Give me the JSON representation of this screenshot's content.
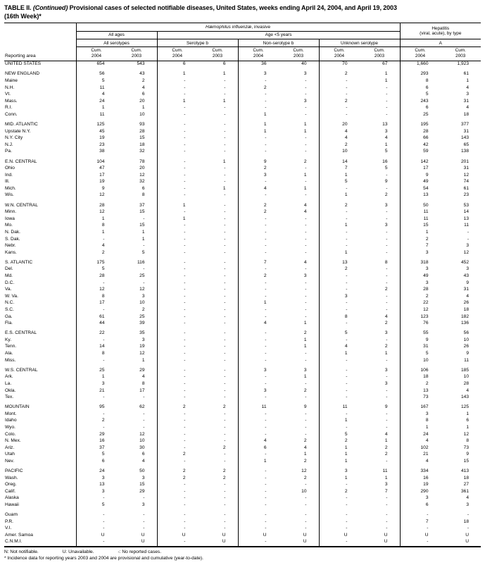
{
  "title": {
    "label": "TABLE II.",
    "continued": "(Continued)",
    "main": "Provisional cases of selected notifiable diseases, United States, weeks ending April 24, 2004, and April 19, 2003",
    "week": "(16th Week)*"
  },
  "header": {
    "reporting_area": "Reporting area",
    "group1_italic": "Hæmophilus influenzæ",
    "group1_rest": ", invasive",
    "group2_line1": "Hepatitis",
    "group2_line2": "(viral, acute), by type",
    "all_ages": "All ages",
    "age_under5": "Age <5 years",
    "all_serotypes": "All serotypes",
    "serotype_b": "Serotype b",
    "non_serotype_b": "Non-serotype b",
    "unknown_serotype": "Unknown serotype",
    "type_a": "A",
    "cum_label": "Cum.",
    "year_2004": "2004",
    "year_2003": "2003"
  },
  "rows": [
    {
      "area": "UNITED STATES",
      "t": "total",
      "v": [
        "654",
        "543",
        "6",
        "6",
        "36",
        "40",
        "70",
        "67",
        "1,660",
        "1,923"
      ]
    },
    {
      "area": "NEW ENGLAND",
      "t": "region",
      "gap": true,
      "v": [
        "56",
        "43",
        "1",
        "1",
        "3",
        "3",
        "2",
        "1",
        "293",
        "61"
      ]
    },
    {
      "area": "Maine",
      "t": "state",
      "v": [
        "5",
        "2",
        "-",
        "-",
        "-",
        "-",
        "-",
        "1",
        "8",
        "1"
      ]
    },
    {
      "area": "N.H.",
      "t": "state",
      "v": [
        "11",
        "4",
        "-",
        "-",
        "2",
        "-",
        "-",
        "-",
        "6",
        "4"
      ]
    },
    {
      "area": "Vt.",
      "t": "state",
      "v": [
        "4",
        "6",
        "-",
        "-",
        "-",
        "-",
        "-",
        "-",
        "5",
        "3"
      ]
    },
    {
      "area": "Mass.",
      "t": "state",
      "v": [
        "24",
        "20",
        "1",
        "1",
        "-",
        "3",
        "2",
        "-",
        "243",
        "31"
      ]
    },
    {
      "area": "R.I.",
      "t": "state",
      "v": [
        "1",
        "1",
        "-",
        "-",
        "-",
        "-",
        "-",
        "-",
        "6",
        "4"
      ]
    },
    {
      "area": "Conn.",
      "t": "state",
      "v": [
        "11",
        "10",
        "-",
        "-",
        "1",
        "-",
        "-",
        "-",
        "25",
        "18"
      ]
    },
    {
      "area": "MID. ATLANTIC",
      "t": "region",
      "gap": true,
      "v": [
        "125",
        "93",
        "-",
        "-",
        "1",
        "1",
        "20",
        "13",
        "195",
        "377"
      ]
    },
    {
      "area": "Upstate N.Y.",
      "t": "state",
      "v": [
        "45",
        "28",
        "-",
        "-",
        "1",
        "1",
        "4",
        "3",
        "28",
        "31"
      ]
    },
    {
      "area": "N.Y. City",
      "t": "state",
      "v": [
        "19",
        "15",
        "-",
        "-",
        "-",
        "-",
        "4",
        "4",
        "66",
        "143"
      ]
    },
    {
      "area": "N.J.",
      "t": "state",
      "v": [
        "23",
        "18",
        "-",
        "-",
        "-",
        "-",
        "2",
        "1",
        "42",
        "65"
      ]
    },
    {
      "area": "Pa.",
      "t": "state",
      "v": [
        "38",
        "32",
        "-",
        "-",
        "-",
        "-",
        "10",
        "5",
        "59",
        "138"
      ]
    },
    {
      "area": "E.N. CENTRAL",
      "t": "region",
      "gap": true,
      "v": [
        "104",
        "78",
        "-",
        "1",
        "9",
        "2",
        "14",
        "16",
        "142",
        "201"
      ]
    },
    {
      "area": "Ohio",
      "t": "state",
      "v": [
        "47",
        "20",
        "-",
        "-",
        "2",
        "-",
        "7",
        "5",
        "17",
        "31"
      ]
    },
    {
      "area": "Ind.",
      "t": "state",
      "v": [
        "17",
        "12",
        "-",
        "-",
        "3",
        "1",
        "1",
        "-",
        "9",
        "12"
      ]
    },
    {
      "area": "Ill.",
      "t": "state",
      "v": [
        "19",
        "32",
        "-",
        "-",
        "-",
        "-",
        "5",
        "9",
        "49",
        "74"
      ]
    },
    {
      "area": "Mich.",
      "t": "state",
      "v": [
        "9",
        "6",
        "-",
        "1",
        "4",
        "1",
        "-",
        "-",
        "54",
        "61"
      ]
    },
    {
      "area": "Wis.",
      "t": "state",
      "v": [
        "12",
        "8",
        "-",
        "-",
        "-",
        "-",
        "1",
        "2",
        "13",
        "23"
      ]
    },
    {
      "area": "W.N. CENTRAL",
      "t": "region",
      "gap": true,
      "v": [
        "28",
        "37",
        "1",
        "-",
        "2",
        "4",
        "2",
        "3",
        "50",
        "53"
      ]
    },
    {
      "area": "Minn.",
      "t": "state",
      "v": [
        "12",
        "15",
        "-",
        "-",
        "2",
        "4",
        "-",
        "-",
        "11",
        "14"
      ]
    },
    {
      "area": "Iowa",
      "t": "state",
      "v": [
        "1",
        "-",
        "1",
        "-",
        "-",
        "-",
        "-",
        "-",
        "11",
        "13"
      ]
    },
    {
      "area": "Mo.",
      "t": "state",
      "v": [
        "8",
        "15",
        "-",
        "-",
        "-",
        "-",
        "1",
        "3",
        "15",
        "11"
      ]
    },
    {
      "area": "N. Dak.",
      "t": "state",
      "v": [
        "1",
        "1",
        "-",
        "-",
        "-",
        "-",
        "-",
        "-",
        "1",
        "-"
      ]
    },
    {
      "area": "S. Dak.",
      "t": "state",
      "v": [
        "-",
        "1",
        "-",
        "-",
        "-",
        "-",
        "-",
        "-",
        "2",
        "-"
      ]
    },
    {
      "area": "Nebr.",
      "t": "state",
      "v": [
        "4",
        "-",
        "-",
        "-",
        "-",
        "-",
        "-",
        "-",
        "7",
        "3"
      ]
    },
    {
      "area": "Kans.",
      "t": "state",
      "v": [
        "2",
        "5",
        "-",
        "-",
        "-",
        "-",
        "1",
        "-",
        "3",
        "12"
      ]
    },
    {
      "area": "S. ATLANTIC",
      "t": "region",
      "gap": true,
      "v": [
        "175",
        "116",
        "-",
        "-",
        "7",
        "4",
        "13",
        "8",
        "318",
        "452"
      ]
    },
    {
      "area": "Del.",
      "t": "state",
      "v": [
        "5",
        "-",
        "-",
        "-",
        "-",
        "-",
        "2",
        "-",
        "3",
        "3"
      ]
    },
    {
      "area": "Md.",
      "t": "state",
      "v": [
        "28",
        "25",
        "-",
        "-",
        "2",
        "3",
        "-",
        "-",
        "49",
        "43"
      ]
    },
    {
      "area": "D.C.",
      "t": "state",
      "v": [
        "-",
        "-",
        "-",
        "-",
        "-",
        "-",
        "-",
        "-",
        "3",
        "9"
      ]
    },
    {
      "area": "Va.",
      "t": "state",
      "v": [
        "12",
        "12",
        "-",
        "-",
        "-",
        "-",
        "-",
        "2",
        "28",
        "31"
      ]
    },
    {
      "area": "W. Va.",
      "t": "state",
      "v": [
        "8",
        "3",
        "-",
        "-",
        "-",
        "-",
        "3",
        "-",
        "2",
        "4"
      ]
    },
    {
      "area": "N.C.",
      "t": "state",
      "v": [
        "17",
        "10",
        "-",
        "-",
        "1",
        "-",
        "-",
        "-",
        "22",
        "26"
      ]
    },
    {
      "area": "S.C.",
      "t": "state",
      "v": [
        "-",
        "2",
        "-",
        "-",
        "-",
        "-",
        "-",
        "-",
        "12",
        "18"
      ]
    },
    {
      "area": "Ga.",
      "t": "state",
      "v": [
        "61",
        "25",
        "-",
        "-",
        "-",
        "-",
        "8",
        "4",
        "123",
        "182"
      ]
    },
    {
      "area": "Fla.",
      "t": "state",
      "v": [
        "44",
        "39",
        "-",
        "-",
        "4",
        "1",
        "-",
        "2",
        "76",
        "136"
      ]
    },
    {
      "area": "E.S. CENTRAL",
      "t": "region",
      "gap": true,
      "v": [
        "22",
        "35",
        "-",
        "-",
        "-",
        "2",
        "5",
        "3",
        "55",
        "56"
      ]
    },
    {
      "area": "Ky.",
      "t": "state",
      "v": [
        "-",
        "3",
        "-",
        "-",
        "-",
        "1",
        "-",
        "-",
        "9",
        "10"
      ]
    },
    {
      "area": "Tenn.",
      "t": "state",
      "v": [
        "14",
        "19",
        "-",
        "-",
        "-",
        "1",
        "4",
        "2",
        "31",
        "26"
      ]
    },
    {
      "area": "Ala.",
      "t": "state",
      "v": [
        "8",
        "12",
        "-",
        "-",
        "-",
        "-",
        "1",
        "1",
        "5",
        "9"
      ]
    },
    {
      "area": "Miss.",
      "t": "state",
      "v": [
        "-",
        "1",
        "-",
        "-",
        "-",
        "-",
        "-",
        "-",
        "10",
        "11"
      ]
    },
    {
      "area": "W.S. CENTRAL",
      "t": "region",
      "gap": true,
      "v": [
        "25",
        "29",
        "-",
        "-",
        "3",
        "3",
        "-",
        "3",
        "106",
        "185"
      ]
    },
    {
      "area": "Ark.",
      "t": "state",
      "v": [
        "1",
        "4",
        "-",
        "-",
        "-",
        "1",
        "-",
        "-",
        "18",
        "10"
      ]
    },
    {
      "area": "La.",
      "t": "state",
      "v": [
        "3",
        "8",
        "-",
        "-",
        "-",
        "-",
        "-",
        "3",
        "2",
        "28"
      ]
    },
    {
      "area": "Okla.",
      "t": "state",
      "v": [
        "21",
        "17",
        "-",
        "-",
        "3",
        "2",
        "-",
        "-",
        "13",
        "4"
      ]
    },
    {
      "area": "Tex.",
      "t": "state",
      "v": [
        "-",
        "-",
        "-",
        "-",
        "-",
        "-",
        "-",
        "-",
        "73",
        "143"
      ]
    },
    {
      "area": "MOUNTAIN",
      "t": "region",
      "gap": true,
      "v": [
        "95",
        "62",
        "2",
        "2",
        "11",
        "9",
        "11",
        "9",
        "167",
        "125"
      ]
    },
    {
      "area": "Mont.",
      "t": "state",
      "v": [
        "-",
        "-",
        "-",
        "-",
        "-",
        "-",
        "-",
        "-",
        "3",
        "1"
      ]
    },
    {
      "area": "Idaho",
      "t": "state",
      "v": [
        "2",
        "-",
        "-",
        "-",
        "-",
        "-",
        "1",
        "-",
        "8",
        "6"
      ]
    },
    {
      "area": "Wyo.",
      "t": "state",
      "v": [
        "-",
        "-",
        "-",
        "-",
        "-",
        "-",
        "-",
        "-",
        "1",
        "1"
      ]
    },
    {
      "area": "Colo.",
      "t": "state",
      "v": [
        "29",
        "12",
        "-",
        "-",
        "-",
        "-",
        "5",
        "4",
        "24",
        "12"
      ]
    },
    {
      "area": "N. Mex.",
      "t": "state",
      "v": [
        "16",
        "10",
        "-",
        "-",
        "4",
        "2",
        "2",
        "1",
        "4",
        "8"
      ]
    },
    {
      "area": "Ariz.",
      "t": "state",
      "v": [
        "37",
        "30",
        "-",
        "2",
        "6",
        "4",
        "1",
        "2",
        "102",
        "73"
      ]
    },
    {
      "area": "Utah",
      "t": "state",
      "v": [
        "5",
        "6",
        "2",
        "-",
        "-",
        "1",
        "1",
        "2",
        "21",
        "9"
      ]
    },
    {
      "area": "Nev.",
      "t": "state",
      "v": [
        "6",
        "4",
        "-",
        "-",
        "1",
        "2",
        "1",
        "-",
        "4",
        "15"
      ]
    },
    {
      "area": "PACIFIC",
      "t": "region",
      "gap": true,
      "v": [
        "24",
        "50",
        "2",
        "2",
        "-",
        "12",
        "3",
        "11",
        "334",
        "413"
      ]
    },
    {
      "area": "Wash.",
      "t": "state",
      "v": [
        "3",
        "3",
        "2",
        "2",
        "-",
        "2",
        "1",
        "1",
        "16",
        "18"
      ]
    },
    {
      "area": "Oreg.",
      "t": "state",
      "v": [
        "13",
        "15",
        "-",
        "-",
        "-",
        "-",
        "-",
        "3",
        "19",
        "27"
      ]
    },
    {
      "area": "Calif.",
      "t": "state",
      "v": [
        "3",
        "29",
        "-",
        "-",
        "-",
        "10",
        "2",
        "7",
        "290",
        "361"
      ]
    },
    {
      "area": "Alaska",
      "t": "state",
      "v": [
        "-",
        "-",
        "-",
        "-",
        "-",
        "-",
        "-",
        "-",
        "3",
        "4"
      ]
    },
    {
      "area": "Hawaii",
      "t": "state",
      "v": [
        "5",
        "3",
        "-",
        "-",
        "-",
        "-",
        "-",
        "-",
        "6",
        "3"
      ]
    },
    {
      "area": "Guam",
      "t": "territory",
      "gap": true,
      "v": [
        "-",
        "-",
        "-",
        "-",
        "-",
        "-",
        "-",
        "-",
        "-",
        "-"
      ]
    },
    {
      "area": "P.R.",
      "t": "territory",
      "v": [
        "-",
        "-",
        "-",
        "-",
        "-",
        "-",
        "-",
        "-",
        "7",
        "18"
      ]
    },
    {
      "area": "V.I.",
      "t": "territory",
      "v": [
        "-",
        "-",
        "-",
        "-",
        "-",
        "-",
        "-",
        "-",
        "-",
        "-"
      ]
    },
    {
      "area": "Amer. Samoa",
      "t": "territory",
      "v": [
        "U",
        "U",
        "U",
        "U",
        "U",
        "U",
        "U",
        "U",
        "U",
        "U"
      ]
    },
    {
      "area": "C.N.M.I.",
      "t": "territory",
      "v": [
        "-",
        "U",
        "-",
        "U",
        "-",
        "U",
        "-",
        "U",
        "-",
        "U"
      ]
    }
  ],
  "footnotes": {
    "legend": [
      "N: Not notifiable.",
      "U: Unavailable.",
      "-: No reported cases."
    ],
    "note": "* Incidence data for reporting years 2003 and 2004 are provisional and cumulative (year-to-date)."
  }
}
